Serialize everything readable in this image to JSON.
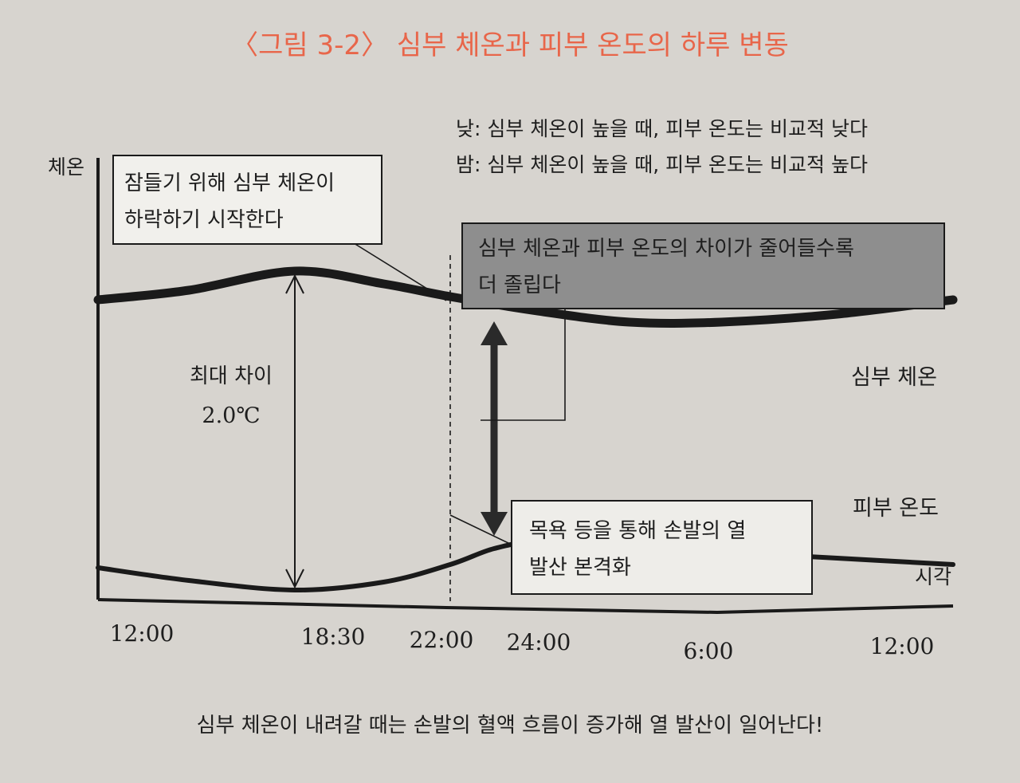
{
  "figure": {
    "title": "〈그림 3-2〉 심부 체온과 피부 온도의 하루 변동",
    "caption": "심부 체온이 내려갈 때는 손발의 혈액 흐름이 증가해 열 발산이 일어난다!"
  },
  "chart_data": {
    "type": "line",
    "ylabel": "체온",
    "xlabel": "시각",
    "x_ticks": [
      "12:00",
      "18:30",
      "22:00",
      "24:00",
      "6:00",
      "12:00"
    ],
    "series": [
      {
        "name": "심부 체온",
        "x": [
          12,
          15,
          18.5,
          20.5,
          22,
          24,
          27,
          30,
          33,
          36
        ],
        "y": [
          0.82,
          0.88,
          1.0,
          0.92,
          0.84,
          0.75,
          0.68,
          0.68,
          0.73,
          0.82
        ]
      },
      {
        "name": "피부 온도",
        "x": [
          12,
          15,
          18.5,
          20.5,
          22,
          23,
          24,
          27,
          30,
          33,
          36
        ],
        "y": [
          -0.86,
          -0.94,
          -1.0,
          -0.95,
          -0.84,
          -0.74,
          -0.7,
          -0.72,
          -0.76,
          -0.8,
          -0.84
        ]
      }
    ],
    "max_gap": {
      "x": 18.5,
      "label_line1": "최대 차이",
      "label_line2": "2.0℃"
    },
    "marker_line_x": 22,
    "gap_arrow_x": 23,
    "legend": [
      "낮: 심부 체온이 높을 때, 피부 온도는 비교적 낮다",
      "밤: 심부 체온이 높을 때, 피부 온도는 비교적 높다"
    ],
    "annotations": [
      {
        "id": "drop",
        "line1": "잠들기 위해 심부 체온이",
        "line2": "하락하기 시작한다"
      },
      {
        "id": "gap",
        "line1": "심부 체온과 피부 온도의 차이가 줄어들수록",
        "line2": "더 졸립다"
      },
      {
        "id": "bath",
        "line1": "목욕 등을 통해 손발의 열",
        "line2": "발산 본격화"
      }
    ],
    "colors": {
      "title": "#e8664a",
      "line": "#1a1a1a",
      "gap_box": "#8e8e8e",
      "paper": "#d7d4cf"
    }
  }
}
